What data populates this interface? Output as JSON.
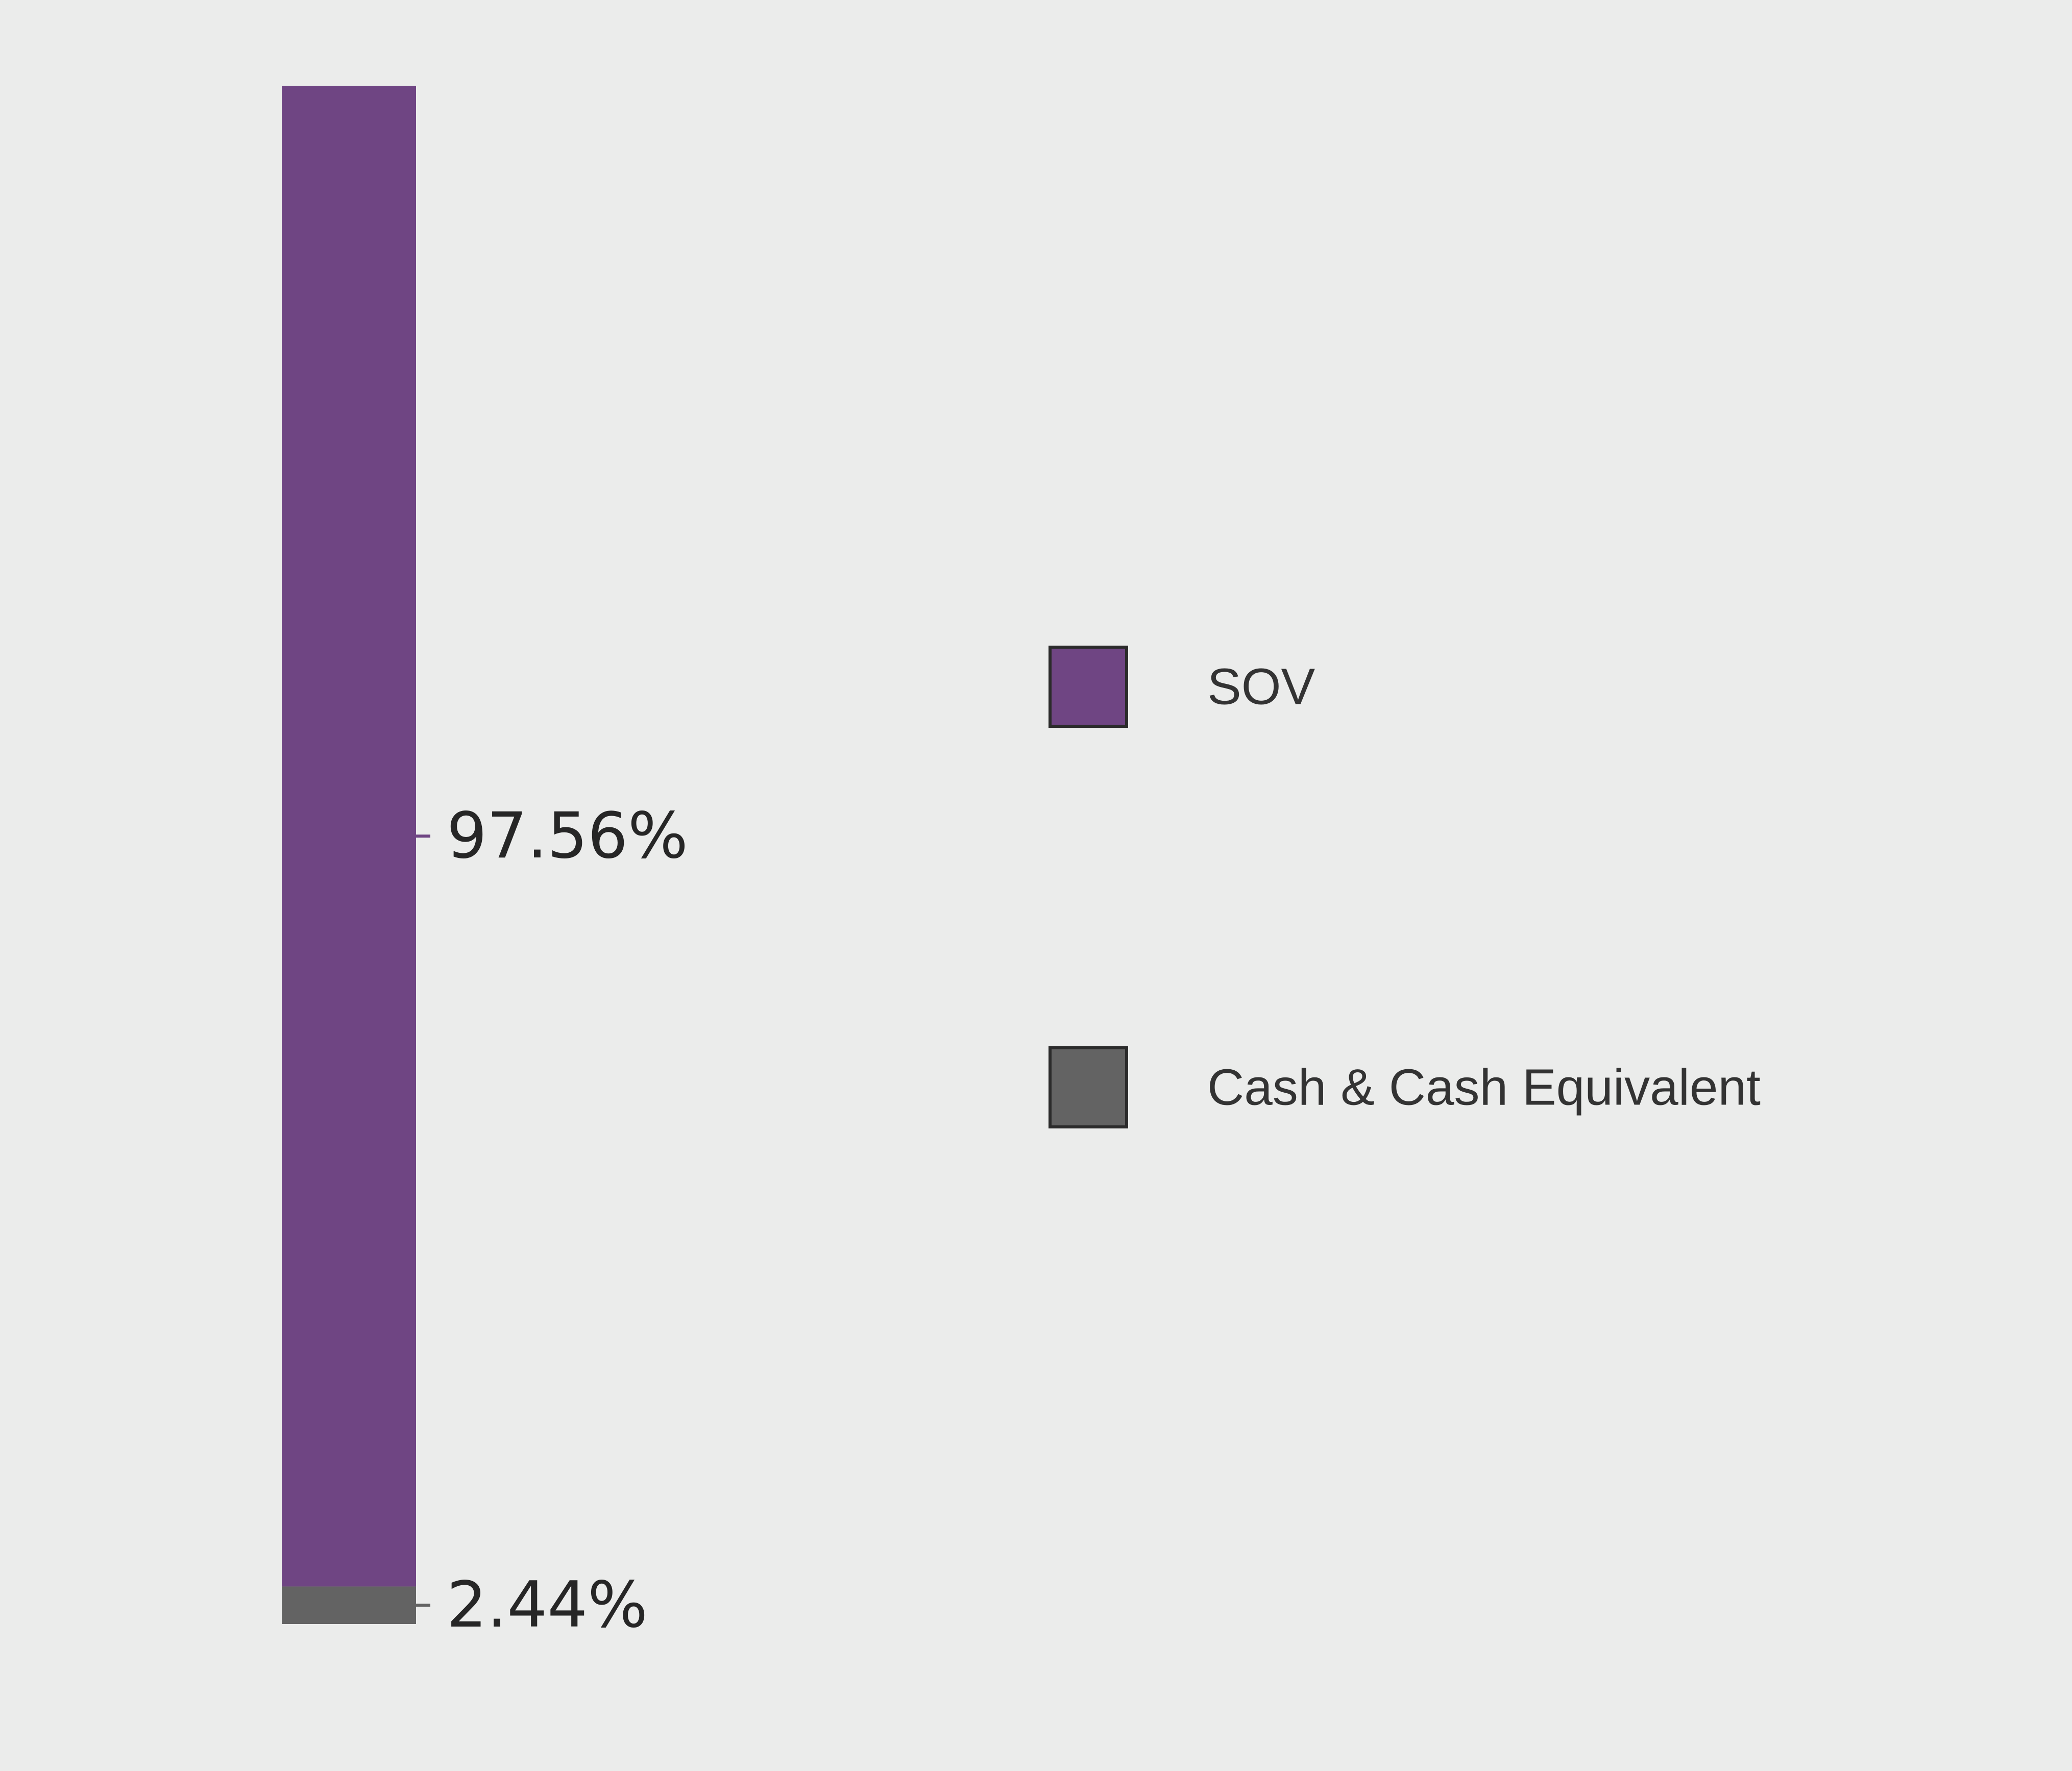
{
  "chart_data": {
    "type": "bar",
    "stacked": true,
    "orientation": "vertical",
    "series": [
      {
        "name": "SOV",
        "value": 97.56,
        "label": "97.56%",
        "color": "#6f4583"
      },
      {
        "name": "Cash & Cash Equivalent",
        "value": 2.44,
        "label": "2.44%",
        "color": "#636363"
      }
    ],
    "ylim": [
      0,
      100
    ],
    "grid": false,
    "legend": {
      "position": "right",
      "items": [
        {
          "label": "SOV",
          "color": "#6f4583"
        },
        {
          "label": "Cash & Cash Equivalent",
          "color": "#636363"
        }
      ]
    },
    "background_color": "#ebeceb",
    "label_color": "#262626",
    "legend_text_color": "#333333"
  }
}
